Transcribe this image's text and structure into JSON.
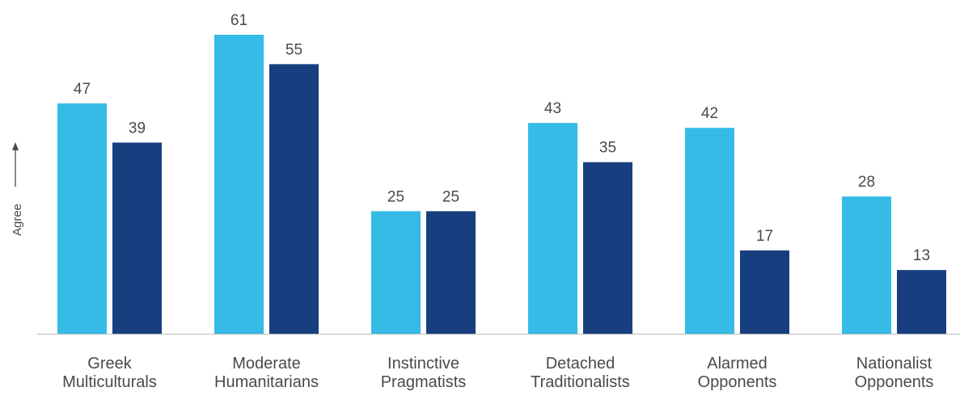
{
  "chart_data": {
    "type": "bar",
    "categories": [
      [
        "Greek",
        "Multiculturals"
      ],
      [
        "Moderate",
        "Humanitarians"
      ],
      [
        "Instinctive",
        "Pragmatists"
      ],
      [
        "Detached",
        "Traditionalists"
      ],
      [
        "Alarmed",
        "Opponents"
      ],
      [
        "Nationalist",
        "Opponents"
      ]
    ],
    "series": [
      {
        "values": [
          47,
          61,
          25,
          43,
          42,
          28
        ],
        "color": "#35bbe6"
      },
      {
        "values": [
          39,
          55,
          25,
          35,
          17,
          13
        ],
        "color": "#173f80"
      }
    ],
    "title": "",
    "xlabel": "",
    "ylabel": "Agree",
    "ylabel_arrow": "up",
    "ylim": [
      0,
      61
    ],
    "grid": false,
    "legend": "none",
    "data_labels": true,
    "baseline_color": "#bdbdbd",
    "label_color": "#4a4a4a"
  }
}
